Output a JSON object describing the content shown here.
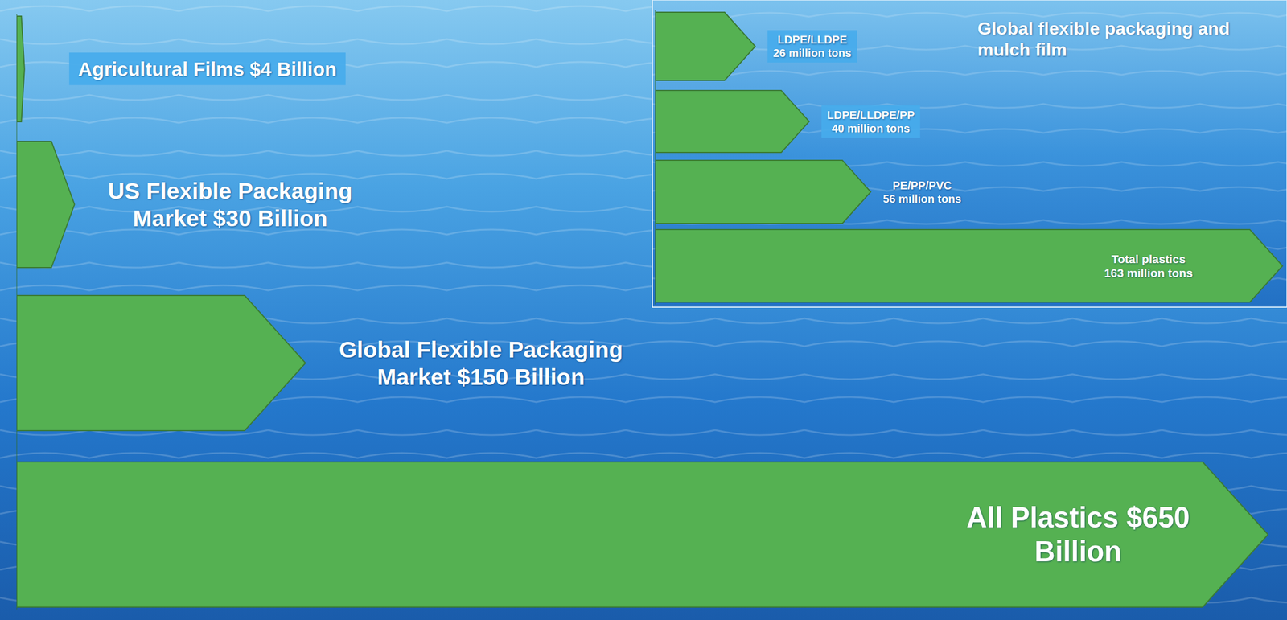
{
  "chart_data": [
    {
      "type": "bar",
      "orientation": "horizontal",
      "categories": [
        "Agricultural Films",
        "US Flexible Packaging Market",
        "Global Flexible Packaging Market",
        "All Plastics"
      ],
      "values": [
        4,
        30,
        150,
        650
      ],
      "value_labels": [
        "$4 Billion",
        "$30 Billion",
        "$150 Billion",
        "$650 Billion"
      ],
      "xlim": [
        0,
        650
      ],
      "color": "#55b152",
      "data_labels": true,
      "tick_labels": false
    },
    {
      "type": "bar",
      "orientation": "horizontal",
      "title": "Global flexible packaging and mulch film",
      "categories": [
        "LDPE/LLDPE",
        "LDPE/LLDPE/PP",
        "PE/PP/PVC",
        "Total plastics"
      ],
      "values": [
        26,
        40,
        56,
        163
      ],
      "value_labels": [
        "26 million tons",
        "40 million tons",
        "56 million tons",
        "163 million tons"
      ],
      "xlim": [
        0,
        163
      ],
      "color": "#55b152",
      "data_labels": true,
      "tick_labels": false
    }
  ]
}
